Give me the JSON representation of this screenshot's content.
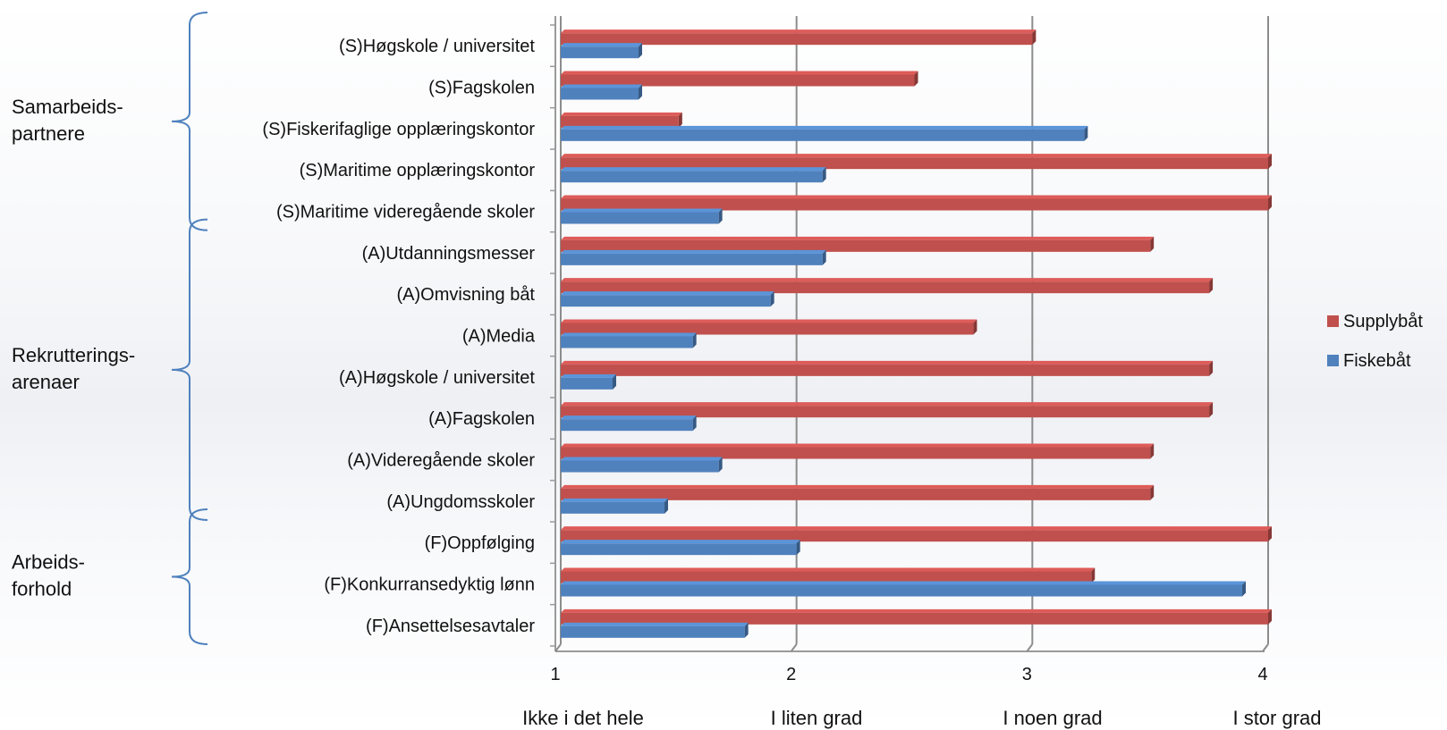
{
  "chart_data": {
    "type": "bar",
    "orientation": "horizontal",
    "title": "",
    "xlabel": "",
    "ylabel": "",
    "xlim": [
      1,
      4
    ],
    "x_ticks": [
      1,
      2,
      3,
      4
    ],
    "scale_labels": [
      "Ikke i det hele",
      "I liten grad",
      "I noen grad",
      "I stor grad"
    ],
    "grid": true,
    "legend_position": "right",
    "categories": [
      "(S)Høgskole / universitet",
      "(S)Fagskolen",
      "(S)Fiskerifaglige opplæringskontor",
      "(S)Maritime opplæringskontor",
      "(S)Maritime videregående skoler",
      "(A)Utdanningsmesser",
      "(A)Omvisning båt",
      "(A)Media",
      "(A)Høgskole / universitet",
      "(A)Fagskolen",
      "(A)Videregående skoler",
      "(A)Ungdomsskoler",
      "(F)Oppfølging",
      "(F)Konkurransedyktig lønn",
      "(F)Ansettelsesavtaler"
    ],
    "series": [
      {
        "name": "Supplybåt",
        "color": "#c0504d",
        "values": [
          3.0,
          2.5,
          1.5,
          4.0,
          4.0,
          3.5,
          3.75,
          2.75,
          3.75,
          3.75,
          3.5,
          3.5,
          4.0,
          3.25,
          4.0
        ]
      },
      {
        "name": "Fiskebåt",
        "color": "#4f81bd",
        "values": [
          1.33,
          1.33,
          3.22,
          2.11,
          1.67,
          2.11,
          1.89,
          1.56,
          1.22,
          1.56,
          1.67,
          1.44,
          2.0,
          3.89,
          1.78
        ]
      }
    ],
    "groups": [
      {
        "label_lines": [
          "Samarbeids-",
          "partnere"
        ],
        "from": 0,
        "to": 4
      },
      {
        "label_lines": [
          "Rekrutterings-",
          "arenaer"
        ],
        "from": 5,
        "to": 11
      },
      {
        "label_lines": [
          "Arbeids-",
          "forhold"
        ],
        "from": 12,
        "to": 14
      }
    ]
  }
}
